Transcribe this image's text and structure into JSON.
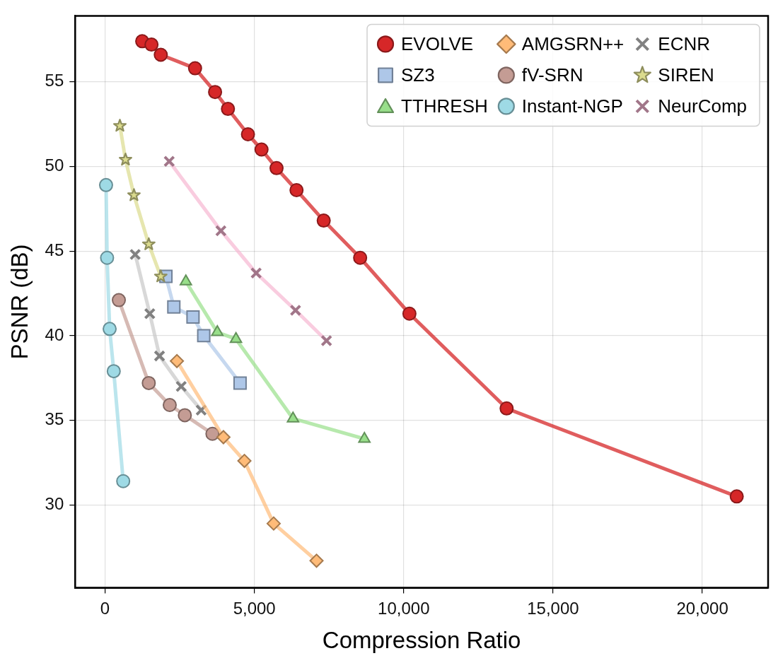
{
  "chart_data": {
    "type": "line",
    "xlabel": "Compression Ratio",
    "ylabel": "PSNR (dB)",
    "xlim": [
      -1000,
      22200
    ],
    "ylim": [
      25.1,
      58.9
    ],
    "xticks": [
      {
        "value": 0,
        "label": "0"
      },
      {
        "value": 5000,
        "label": "5,000"
      },
      {
        "value": 10000,
        "label": "10,000"
      },
      {
        "value": 15000,
        "label": "15,000"
      },
      {
        "value": 20000,
        "label": "20,000"
      }
    ],
    "yticks": [
      30,
      35,
      40,
      45,
      50,
      55
    ],
    "grid": true,
    "legend": "top right",
    "line_style": "solid",
    "series": [
      {
        "name": "EVOLVE",
        "color": "#d62728",
        "marker": "circle",
        "x": [
          1244,
          1555,
          1866,
          3014,
          3684,
          4115,
          4785,
          5239,
          5742,
          6411,
          7321,
          8541,
          10191,
          13445,
          21150
        ],
        "values": [
          57.4,
          57.2,
          56.6,
          55.8,
          54.4,
          53.4,
          51.9,
          51.0,
          49.9,
          48.6,
          46.8,
          44.6,
          41.3,
          35.7,
          30.5
        ]
      },
      {
        "name": "SZ3",
        "color": "#aec7e8",
        "marker": "square",
        "x": [
          2038,
          2303,
          2945,
          3305,
          4521
        ],
        "values": [
          43.5,
          41.7,
          41.1,
          40.0,
          37.2
        ]
      },
      {
        "name": "TTHRESH",
        "color": "#98df8a",
        "marker": "triangle",
        "x": [
          2706,
          3759,
          4384,
          6293,
          8684
        ],
        "values": [
          43.2,
          40.2,
          39.8,
          35.1,
          33.9
        ]
      },
      {
        "name": "AMGSRN++",
        "color": "#ffbb78",
        "marker": "diamond",
        "x": [
          2406,
          3964,
          4666,
          5646,
          7081
        ],
        "values": [
          38.5,
          34.0,
          32.6,
          28.9,
          26.7
        ]
      },
      {
        "name": "fV-SRN",
        "color": "#c49c94",
        "marker": "circle",
        "x": [
          462,
          1464,
          2166,
          2671,
          3596
        ],
        "values": [
          42.1,
          37.2,
          35.9,
          35.3,
          34.2
        ]
      },
      {
        "name": "Instant-NGP",
        "color": "#9edae5",
        "marker": "circle",
        "x": [
          34,
          68,
          154,
          291,
          608
        ],
        "values": [
          48.9,
          44.6,
          40.4,
          37.9,
          31.4
        ]
      },
      {
        "name": "ECNR",
        "color": "#c7c7c7",
        "marker": "cross",
        "x": [
          1010,
          1498,
          1824,
          2551,
          3219
        ],
        "values": [
          44.8,
          41.3,
          38.8,
          37.0,
          35.6
        ]
      },
      {
        "name": "SIREN",
        "color": "#dbdb8d",
        "marker": "star",
        "x": [
          497,
          685,
          968,
          1464,
          1866
        ],
        "values": [
          52.4,
          50.4,
          48.3,
          45.4,
          43.5
        ]
      },
      {
        "name": "NeurComp",
        "color": "#f7b6d2",
        "marker": "cross",
        "x": [
          2149,
          3879,
          5060,
          6378,
          7415
        ],
        "values": [
          50.3,
          46.2,
          43.7,
          41.5,
          39.7
        ]
      }
    ]
  }
}
